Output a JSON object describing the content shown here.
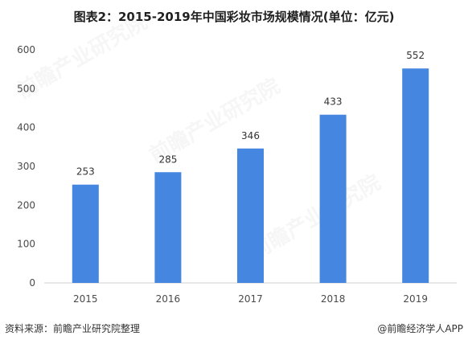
{
  "title": "图表2：2015-2019年中国彩妆市场规模情况(单位：亿元)",
  "footer": {
    "source": "资料来源：前瞻产业研究院整理",
    "credit": "@前瞻经济学人APP"
  },
  "watermark": "前瞻产业研究院",
  "colors": {
    "bar": "#4486e0",
    "axis": "#d0d0d0"
  },
  "chart_data": {
    "type": "bar",
    "title": "图表2：2015-2019年中国彩妆市场规模情况(单位：亿元)",
    "categories": [
      "2015",
      "2016",
      "2017",
      "2018",
      "2019"
    ],
    "values": [
      253,
      285,
      346,
      433,
      552
    ],
    "ylim": [
      0,
      600
    ],
    "yticks": [
      0,
      100,
      200,
      300,
      400,
      500,
      600
    ],
    "xlabel": "",
    "ylabel": "",
    "grid": false,
    "legend": "none"
  }
}
